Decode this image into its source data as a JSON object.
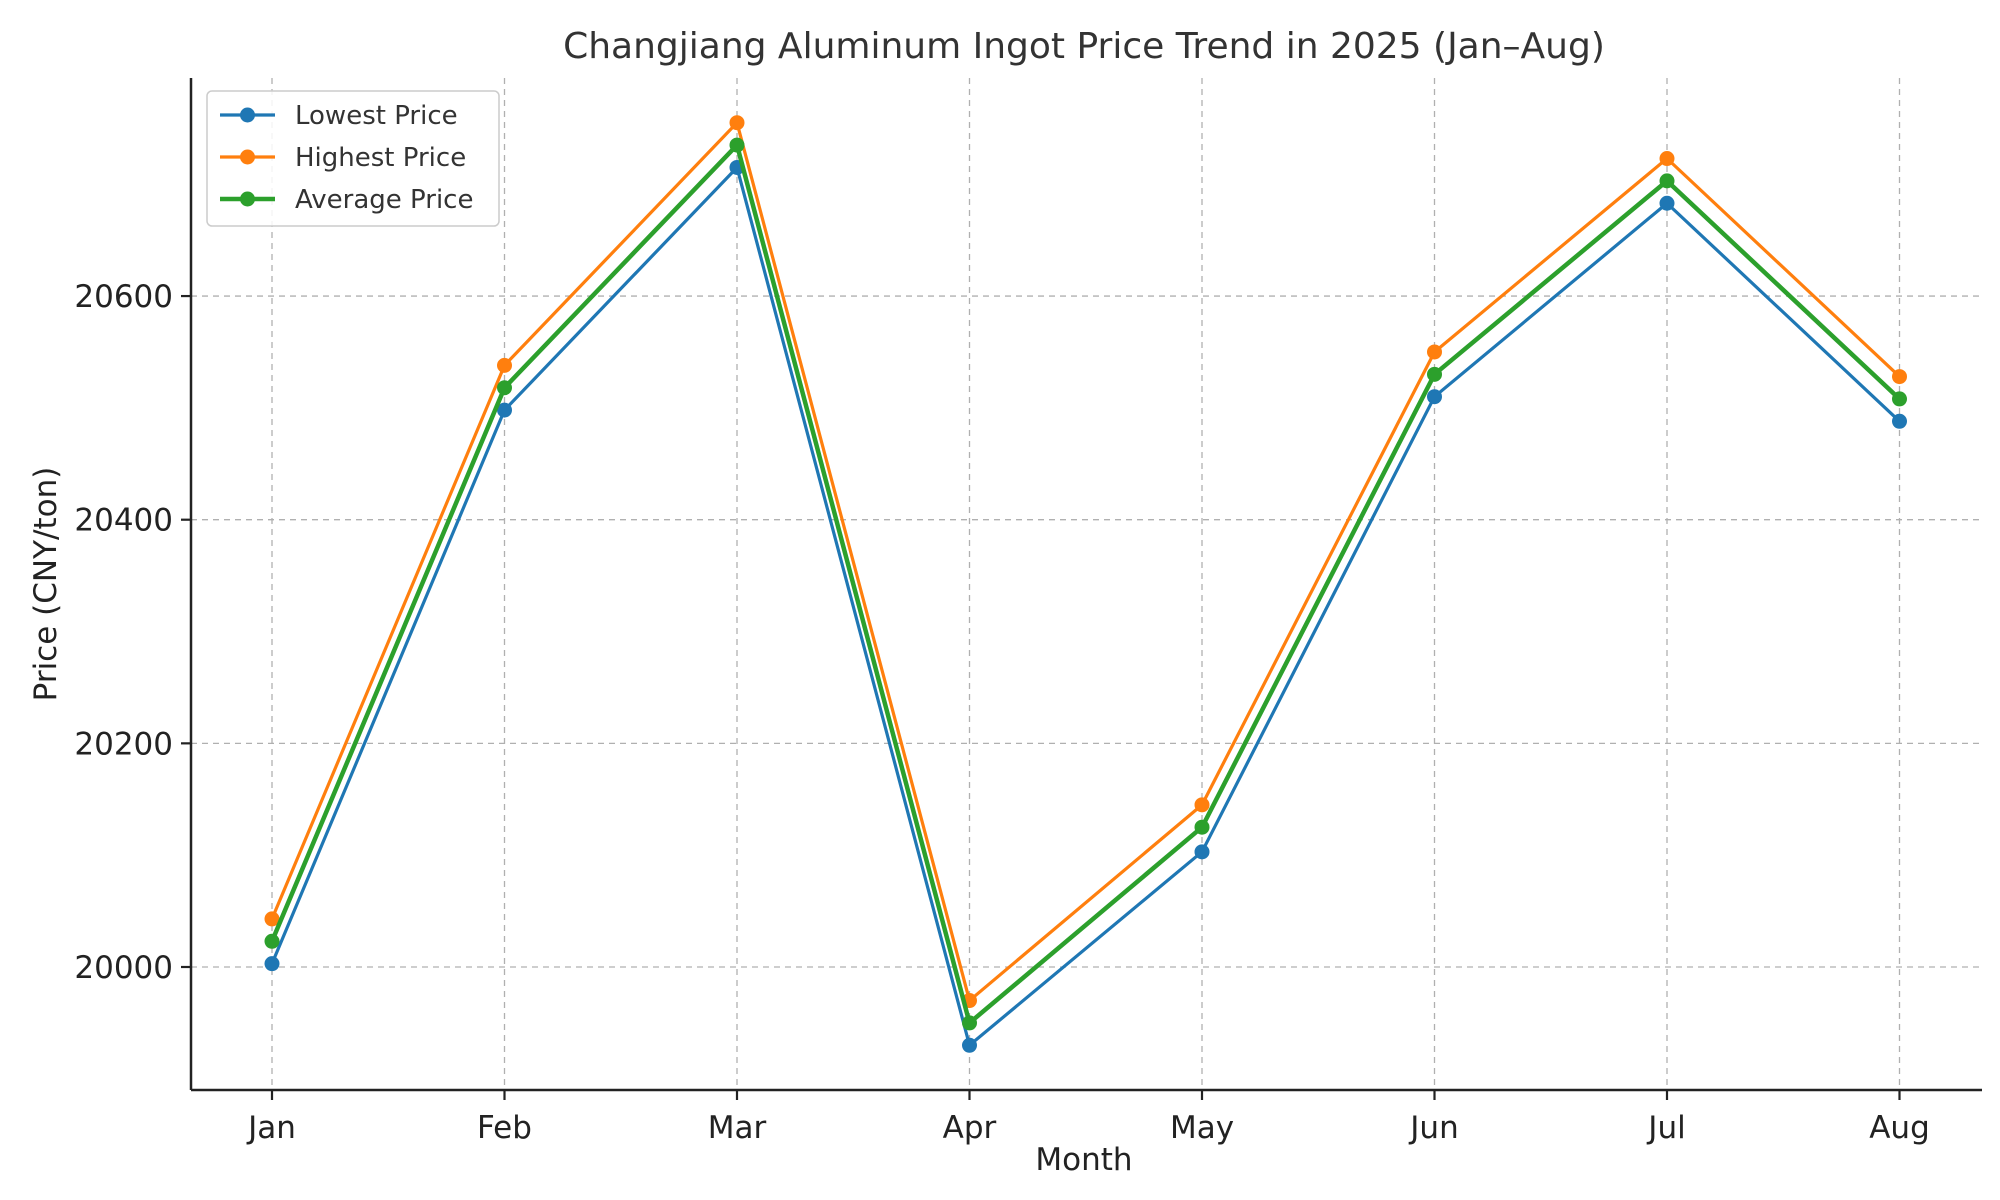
{
  "chart_data": {
    "type": "line",
    "title": "Changjiang Aluminum Ingot Price Trend in 2025 (Jan–Aug)",
    "xlabel": "Month",
    "ylabel": "Price (CNY/ton)",
    "categories": [
      "Jan",
      "Feb",
      "Mar",
      "Apr",
      "May",
      "Jun",
      "Jul",
      "Aug"
    ],
    "ylim": [
      19890,
      20795
    ],
    "yticks": [
      20000,
      20200,
      20400,
      20600
    ],
    "grid": true,
    "legend_position": "top-left",
    "series": [
      {
        "name": "Lowest Price",
        "color": "#1f77b4",
        "values": [
          20003,
          20498,
          20715,
          19930,
          20103,
          20510,
          20683,
          20488
        ]
      },
      {
        "name": "Highest Price",
        "color": "#ff7f0e",
        "values": [
          20043,
          20538,
          20755,
          19970,
          20145,
          20550,
          20723,
          20528
        ]
      },
      {
        "name": "Average Price",
        "color": "#2ca02c",
        "values": [
          20023,
          20518,
          20735,
          19950,
          20125,
          20530,
          20703,
          20508
        ]
      }
    ]
  }
}
